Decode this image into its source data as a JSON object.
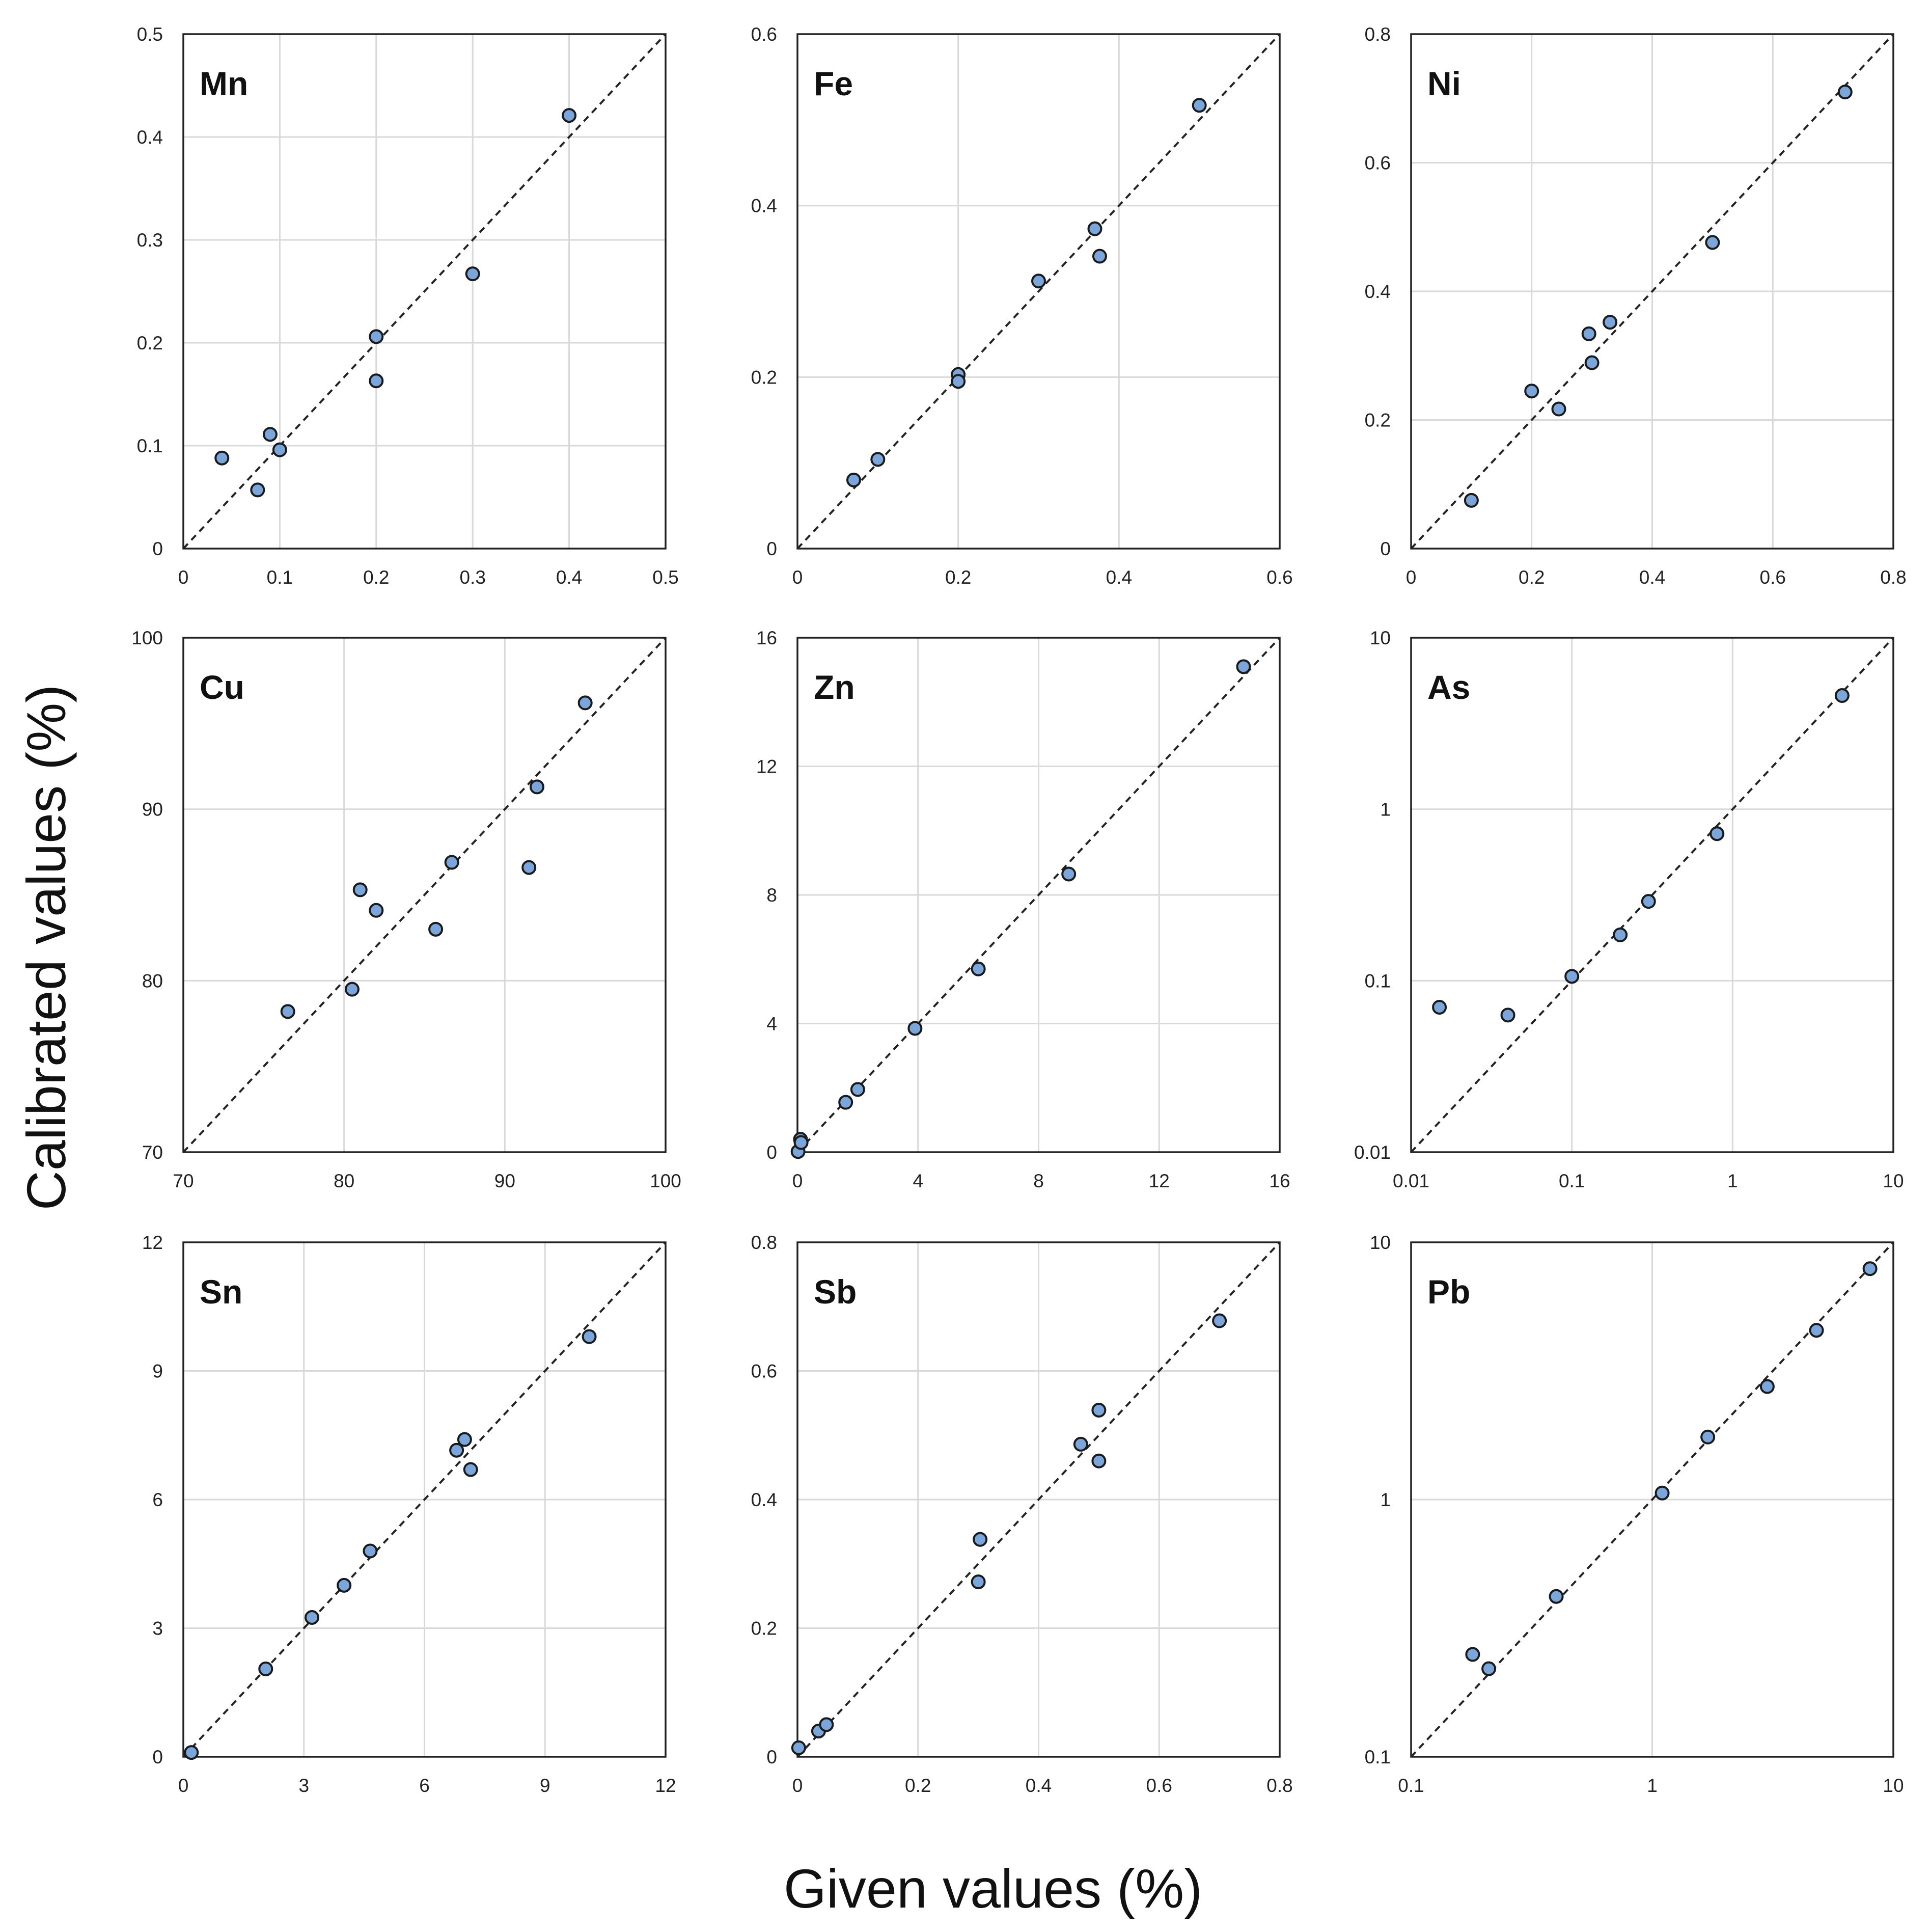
{
  "figure": {
    "ylabel": "Calibrated values (%)",
    "xlabel": "Given values (%)"
  },
  "colors": {
    "marker_fill": "#7aa6dc",
    "marker_edge": "#1a1a1a",
    "grid": "#d9d9d9",
    "reference_line": "#222222"
  },
  "chart_data": [
    {
      "type": "scatter",
      "title": "Mn",
      "scale": "linear",
      "xlim": [
        0,
        0.5
      ],
      "ylim": [
        0,
        0.5
      ],
      "xticks": [
        "0",
        "0.1",
        "0.2",
        "0.3",
        "0.4",
        "0.5"
      ],
      "yticks": [
        "0",
        "0.1",
        "0.2",
        "0.3",
        "0.4",
        "0.5"
      ],
      "x": [
        0.04,
        0.077,
        0.09,
        0.1,
        0.2,
        0.2,
        0.3,
        0.4
      ],
      "y": [
        0.088,
        0.057,
        0.111,
        0.096,
        0.206,
        0.163,
        0.267,
        0.421
      ]
    },
    {
      "type": "scatter",
      "title": "Fe",
      "scale": "linear",
      "xlim": [
        0,
        0.6
      ],
      "ylim": [
        0,
        0.6
      ],
      "xticks": [
        "0",
        "0.2",
        "0.4",
        "0.6"
      ],
      "yticks": [
        "0",
        "0.2",
        "0.4",
        "0.6"
      ],
      "x": [
        0.07,
        0.1,
        0.2,
        0.2,
        0.3,
        0.37,
        0.376,
        0.5
      ],
      "y": [
        0.08,
        0.104,
        0.203,
        0.195,
        0.312,
        0.373,
        0.341,
        0.517
      ]
    },
    {
      "type": "scatter",
      "title": "Ni",
      "scale": "linear",
      "xlim": [
        0,
        0.8
      ],
      "ylim": [
        0,
        0.8
      ],
      "xticks": [
        "0",
        "0.2",
        "0.4",
        "0.6",
        "0.8"
      ],
      "yticks": [
        "0",
        "0.2",
        "0.4",
        "0.6",
        "0.8"
      ],
      "x": [
        0.1,
        0.2,
        0.245,
        0.295,
        0.3,
        0.33,
        0.5,
        0.72
      ],
      "y": [
        0.075,
        0.245,
        0.217,
        0.334,
        0.289,
        0.352,
        0.476,
        0.71
      ]
    },
    {
      "type": "scatter",
      "title": "Cu",
      "scale": "linear",
      "xlim": [
        70,
        100
      ],
      "ylim": [
        70,
        100
      ],
      "xticks": [
        "70",
        "80",
        "90",
        "100"
      ],
      "yticks": [
        "70",
        "80",
        "90",
        "100"
      ],
      "x": [
        76.5,
        80.5,
        81,
        82,
        85.7,
        86.7,
        91.5,
        92,
        95
      ],
      "y": [
        78.2,
        79.5,
        85.3,
        84.1,
        83,
        86.9,
        86.6,
        91.3,
        96.2
      ]
    },
    {
      "type": "scatter",
      "title": "Zn",
      "scale": "linear",
      "xlim": [
        0,
        16
      ],
      "ylim": [
        0,
        16
      ],
      "xticks": [
        "0",
        "4",
        "8",
        "12",
        "16"
      ],
      "yticks": [
        "0",
        "4",
        "8",
        "12",
        "16"
      ],
      "x": [
        0.02,
        0.1,
        0.12,
        1.6,
        2,
        3.9,
        6,
        9,
        14.8
      ],
      "y": [
        0.02,
        0.4,
        0.3,
        1.55,
        1.95,
        3.85,
        5.7,
        8.65,
        15.1
      ]
    },
    {
      "type": "scatter",
      "title": "As",
      "scale": "log",
      "xlim": [
        0.01,
        10
      ],
      "ylim": [
        0.01,
        10
      ],
      "xticks": [
        "0.01",
        "0.1",
        "1",
        "10"
      ],
      "yticks": [
        "0.01",
        "0.1",
        "1",
        "10"
      ],
      "x": [
        0.015,
        0.04,
        0.1,
        0.2,
        0.3,
        0.8,
        4.8
      ],
      "y": [
        0.07,
        0.063,
        0.106,
        0.185,
        0.29,
        0.72,
        4.6
      ]
    },
    {
      "type": "scatter",
      "title": "Sn",
      "scale": "linear",
      "xlim": [
        0,
        12
      ],
      "ylim": [
        0,
        12
      ],
      "xticks": [
        "0",
        "3",
        "6",
        "9",
        "12"
      ],
      "yticks": [
        "0",
        "3",
        "6",
        "9",
        "12"
      ],
      "x": [
        0.2,
        2.05,
        3.2,
        4,
        4.65,
        6.8,
        7,
        7.15,
        10.1
      ],
      "y": [
        0.1,
        2.05,
        3.25,
        4,
        4.8,
        7.15,
        7.4,
        6.7,
        9.8
      ]
    },
    {
      "type": "scatter",
      "title": "Sb",
      "scale": "linear",
      "xlim": [
        0,
        0.8
      ],
      "ylim": [
        0,
        0.8
      ],
      "xticks": [
        "0",
        "0.2",
        "0.4",
        "0.6",
        "0.8"
      ],
      "yticks": [
        "0",
        "0.2",
        "0.4",
        "0.6",
        "0.8"
      ],
      "x": [
        0.002,
        0.035,
        0.048,
        0.3,
        0.303,
        0.47,
        0.5,
        0.5,
        0.7
      ],
      "y": [
        0.014,
        0.04,
        0.05,
        0.272,
        0.338,
        0.486,
        0.539,
        0.46,
        0.678
      ]
    },
    {
      "type": "scatter",
      "title": "Pb",
      "scale": "log",
      "xlim": [
        0.1,
        10
      ],
      "ylim": [
        0.1,
        10
      ],
      "xticks": [
        "0.1",
        "1",
        "10"
      ],
      "yticks": [
        "0.1",
        "1",
        "10"
      ],
      "x": [
        0.18,
        0.21,
        0.4,
        1.1,
        1.7,
        3,
        4.8,
        8
      ],
      "y": [
        0.25,
        0.22,
        0.42,
        1.06,
        1.75,
        2.75,
        4.55,
        7.9
      ]
    }
  ]
}
